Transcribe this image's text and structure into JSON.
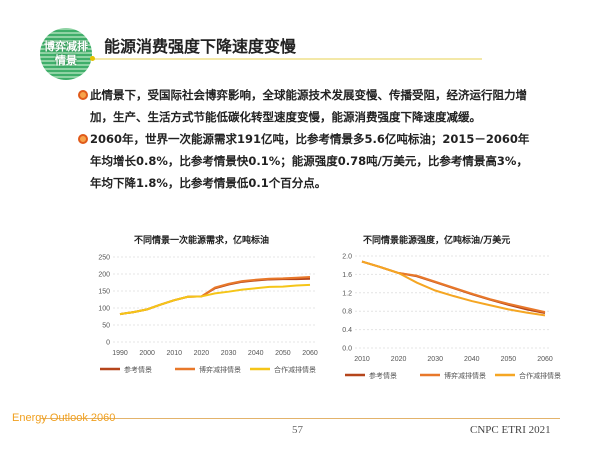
{
  "header": {
    "logo_line1": "博弈减排",
    "logo_line2": "情景",
    "title": "能源消费强度下降速度变慢"
  },
  "bullets": [
    "此情景下，受国际社会博弈影响，全球能源技术发展变慢、传播受阻，经济运行阻力增加，生产、生活方式节能低碳化转型速度变慢，能源消费强度下降速度减缓。",
    "2060年，世界一次能源需求191亿吨，比参考情景多5.6亿吨标油；2015－2060年年均增长0.8%，比参考情景快0.1%；能源强度0.78吨/万美元，比参考情景高3%，年均下降1.8%，比参考情景低0.1个百分点。"
  ],
  "chart_data": [
    {
      "type": "line",
      "title": "不同情景一次能源需求，亿吨标油",
      "x": [
        1990,
        1995,
        2000,
        2005,
        2010,
        2015,
        2020,
        2025,
        2030,
        2035,
        2040,
        2045,
        2050,
        2055,
        2060
      ],
      "xticks": [
        "1990",
        "2000",
        "2010",
        "2020",
        "2030",
        "2040",
        "2050",
        "2060"
      ],
      "yticks": [
        "0",
        "50",
        "100",
        "150",
        "200",
        "250"
      ],
      "ylim": [
        0,
        250
      ],
      "grid": true,
      "legend": "bottom",
      "series": [
        {
          "name": "参考情景",
          "color": "#b5451b",
          "values": [
            82,
            88,
            96,
            110,
            123,
            133,
            134,
            158,
            169,
            177,
            181,
            184,
            185,
            185,
            186
          ]
        },
        {
          "name": "博弈减排情景",
          "color": "#e8782a",
          "values": [
            82,
            88,
            96,
            110,
            123,
            133,
            134,
            160,
            171,
            179,
            183,
            186,
            187,
            189,
            191
          ]
        },
        {
          "name": "合作减排情景",
          "color": "#f5c518",
          "values": [
            82,
            88,
            96,
            110,
            123,
            133,
            134,
            143,
            148,
            154,
            158,
            162,
            163,
            166,
            168
          ]
        }
      ]
    },
    {
      "type": "line",
      "title": "不同情景能源强度，亿吨标油/万美元",
      "x": [
        2010,
        2015,
        2020,
        2025,
        2030,
        2035,
        2040,
        2045,
        2050,
        2055,
        2060
      ],
      "xticks": [
        "2010",
        "2020",
        "2030",
        "2040",
        "2050",
        "2060"
      ],
      "yticks": [
        "0.0",
        "0.4",
        "0.8",
        "1.2",
        "1.6",
        "2.0"
      ],
      "ylim": [
        0,
        2.0
      ],
      "grid": true,
      "legend": "bottom",
      "series": [
        {
          "name": "参考情景",
          "color": "#b5451b",
          "values": [
            1.88,
            1.76,
            1.63,
            1.56,
            1.43,
            1.3,
            1.17,
            1.05,
            0.94,
            0.84,
            0.76
          ]
        },
        {
          "name": "博弈减排情景",
          "color": "#e8782a",
          "values": [
            1.88,
            1.76,
            1.63,
            1.57,
            1.44,
            1.31,
            1.18,
            1.06,
            0.96,
            0.87,
            0.78
          ]
        },
        {
          "name": "合作减排情景",
          "color": "#f5a623",
          "values": [
            1.88,
            1.76,
            1.63,
            1.42,
            1.25,
            1.13,
            1.02,
            0.93,
            0.84,
            0.77,
            0.71
          ]
        }
      ]
    }
  ],
  "footer": {
    "left": "Energy Outlook 2060",
    "page": "57",
    "right": "CNPC ETRI 2021"
  }
}
